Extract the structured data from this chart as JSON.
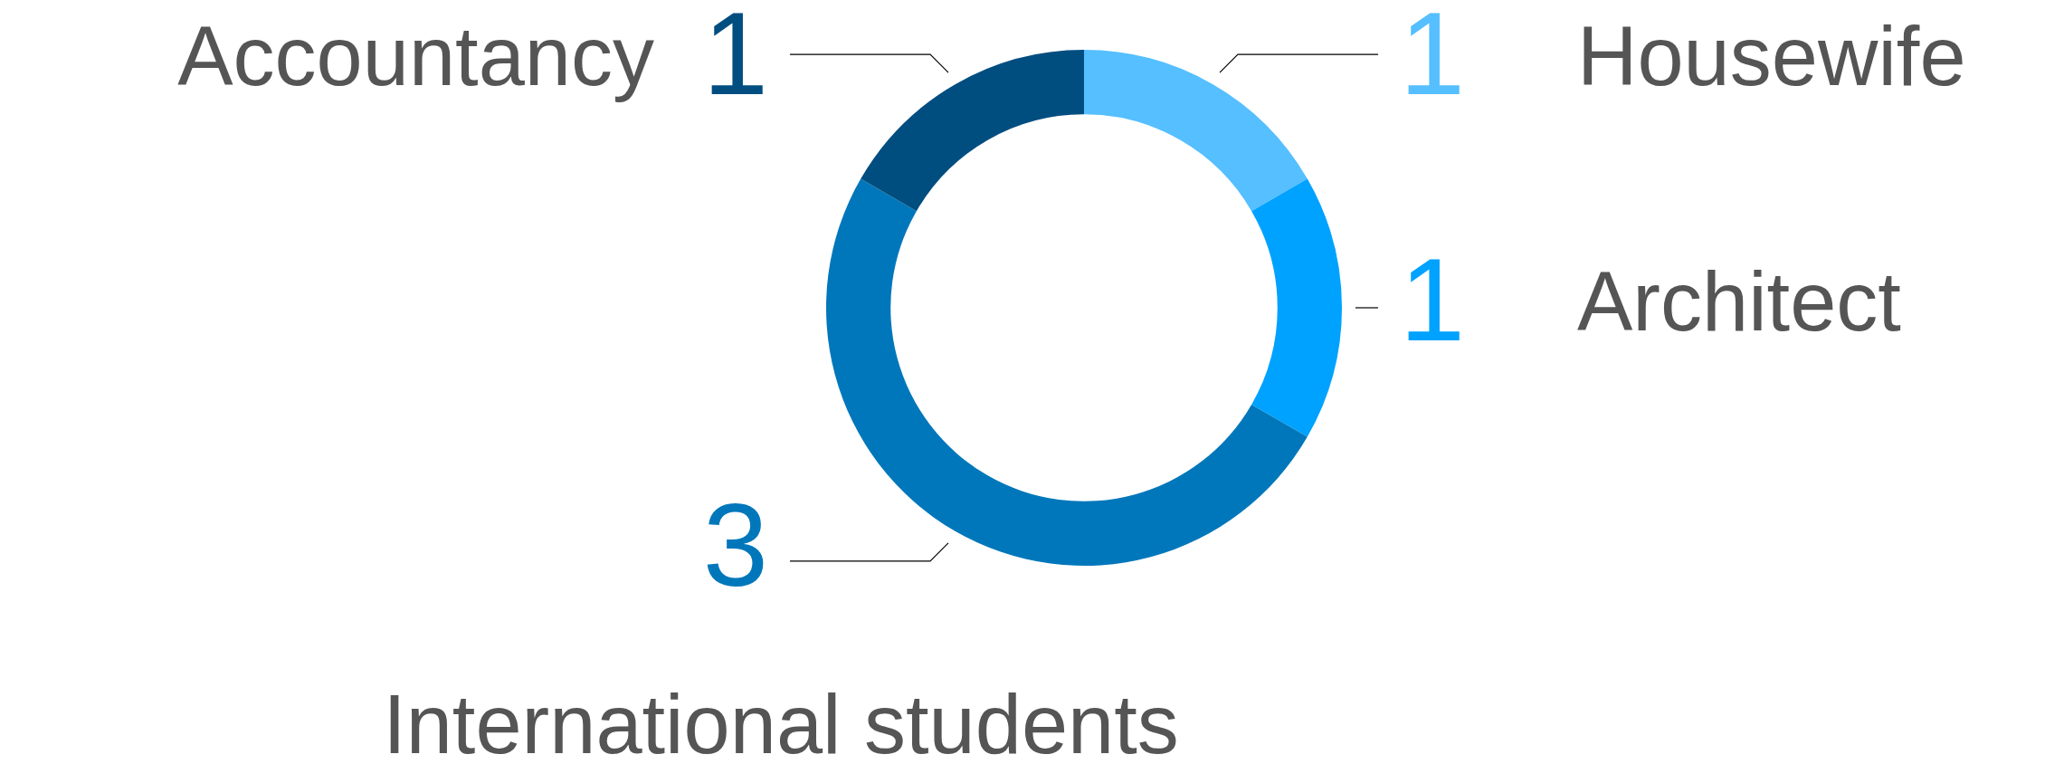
{
  "chart_data": {
    "type": "donut",
    "categories": [
      "Housewife",
      "Architect",
      "International students",
      "Accountancy"
    ],
    "values": [
      1,
      1,
      3,
      1
    ],
    "colors": [
      "#55bfff",
      "#00a2ff",
      "#0077bb",
      "#004d80"
    ],
    "data_labels": true
  }
}
